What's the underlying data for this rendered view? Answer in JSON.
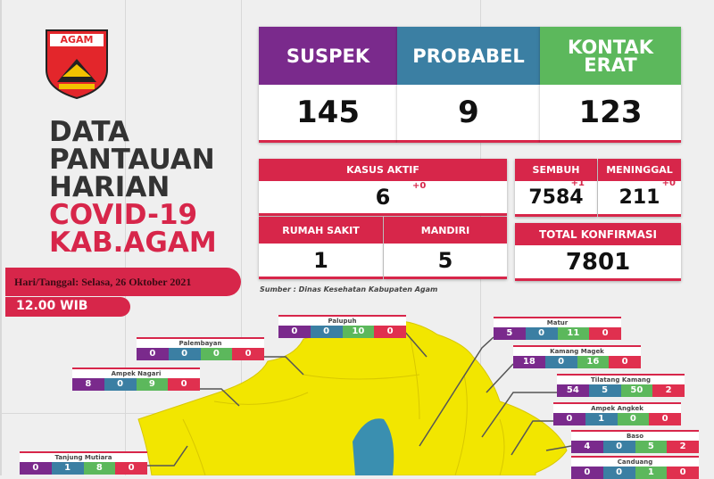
{
  "logo": {
    "text": "AGAM",
    "icon": "agam-regency-crest"
  },
  "title": {
    "line1": "DATA",
    "line2": "PANTAUAN",
    "line3": "HARIAN",
    "line4": "COVID-19",
    "line5": "KAB.AGAM"
  },
  "date": "Hari/Tanggal: Selasa, 26 Oktober 2021",
  "time": "12.00 WIB",
  "colors": {
    "suspek": "#7a2a8c",
    "probabel": "#3b7fa3",
    "kontak": "#5cb85c",
    "accent": "#d7264a",
    "map": "#f2e600"
  },
  "top": [
    {
      "label": "SUSPEK",
      "value": "145"
    },
    {
      "label": "PROBABEL",
      "value": "9"
    },
    {
      "label": "KONTAK ERAT",
      "value": "123"
    }
  ],
  "kasus_aktif": {
    "label": "KASUS AKTIF",
    "value": "6",
    "delta": "+0"
  },
  "rumah_sakit": {
    "label": "RUMAH SAKIT",
    "value": "1"
  },
  "mandiri": {
    "label": "MANDIRI",
    "value": "5"
  },
  "sembuh": {
    "label": "SEMBUH",
    "value": "7584",
    "delta": "+1"
  },
  "meninggal": {
    "label": "MENINGGAL",
    "value": "211",
    "delta": "+0"
  },
  "total": {
    "label": "TOTAL KONFIRMASI",
    "value": "7801"
  },
  "source": "Sumber : Dinas Kesehatan Kabupaten Agam",
  "districts": [
    {
      "name": "Palupuh",
      "values": [
        "0",
        "0",
        "10",
        "0"
      ]
    },
    {
      "name": "Palembayan",
      "values": [
        "0",
        "0",
        "0",
        "0"
      ]
    },
    {
      "name": "Ampek Nagari",
      "values": [
        "8",
        "0",
        "9",
        "0"
      ]
    },
    {
      "name": "Tanjung Mutiara",
      "values": [
        "0",
        "1",
        "8",
        "0"
      ]
    },
    {
      "name": "Matur",
      "values": [
        "5",
        "0",
        "11",
        "0"
      ]
    },
    {
      "name": "Kamang Magek",
      "values": [
        "18",
        "0",
        "16",
        "0"
      ]
    },
    {
      "name": "Tilatang Kamang",
      "values": [
        "54",
        "5",
        "50",
        "2"
      ]
    },
    {
      "name": "Ampek Angkek",
      "values": [
        "0",
        "1",
        "0",
        "0"
      ]
    },
    {
      "name": "Baso",
      "values": [
        "4",
        "0",
        "5",
        "2"
      ]
    },
    {
      "name": "Canduang",
      "values": [
        "0",
        "0",
        "1",
        "0"
      ]
    }
  ]
}
